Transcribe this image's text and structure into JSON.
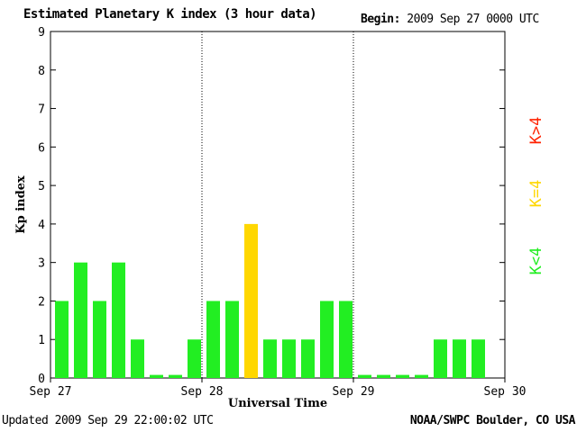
{
  "header": {
    "title": "Estimated Planetary K index (3 hour data)",
    "begin_label": "Begin:",
    "begin_value": "2009 Sep 27 0000 UTC"
  },
  "footer": {
    "updated_label": "Updated",
    "updated_value": "2009 Sep 29 22:00:02 UTC",
    "source": "NOAA/SWPC Boulder, CO USA"
  },
  "chart_data": {
    "type": "bar",
    "title": "Estimated Planetary K index (3 hour data)",
    "xlabel": "Universal Time",
    "ylabel": "Kp index",
    "ylim": [
      0,
      9
    ],
    "yticks": [
      0,
      1,
      2,
      3,
      4,
      5,
      6,
      7,
      8,
      9
    ],
    "x_tick_labels": [
      "Sep 27",
      "Sep 28",
      "Sep 29",
      "Sep 30"
    ],
    "categories": [
      "Sep 27 00",
      "Sep 27 03",
      "Sep 27 06",
      "Sep 27 09",
      "Sep 27 12",
      "Sep 27 15",
      "Sep 27 18",
      "Sep 27 21",
      "Sep 28 00",
      "Sep 28 03",
      "Sep 28 06",
      "Sep 28 09",
      "Sep 28 12",
      "Sep 28 15",
      "Sep 28 18",
      "Sep 28 21",
      "Sep 29 00",
      "Sep 29 03",
      "Sep 29 06",
      "Sep 29 09",
      "Sep 29 12",
      "Sep 29 15",
      "Sep 29 18"
    ],
    "values": [
      2,
      3,
      2,
      3,
      1,
      0,
      0,
      1,
      2,
      2,
      4,
      1,
      1,
      1,
      2,
      2,
      0,
      0,
      0,
      0,
      1,
      1,
      1
    ],
    "colors": {
      "low": "#22ee22",
      "equal": "#ffd700",
      "high": "#ff2200"
    },
    "legend": [
      {
        "label": "K<4",
        "color": "#22ee22"
      },
      {
        "label": "K=4",
        "color": "#ffd700"
      },
      {
        "label": "K>4",
        "color": "#ff2200"
      }
    ],
    "legend_position": "right",
    "grid": false
  }
}
